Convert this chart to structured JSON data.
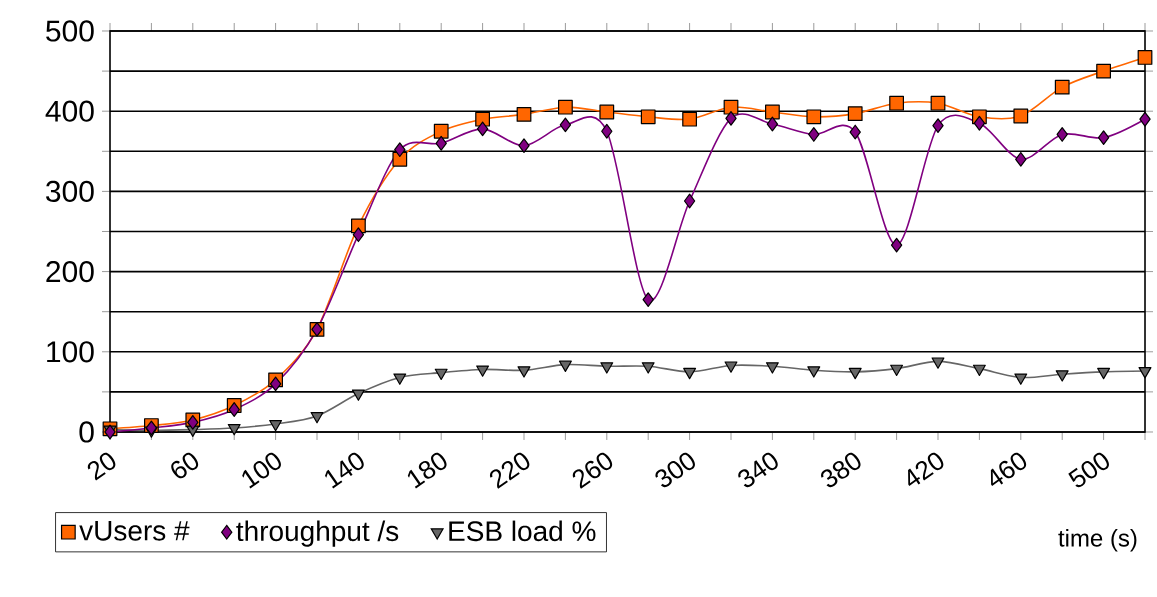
{
  "chart_data": {
    "type": "line",
    "xlabel": "time (s)",
    "categories": [
      "20",
      null,
      "60",
      null,
      "100",
      null,
      "140",
      null,
      "180",
      null,
      "220",
      null,
      "260",
      null,
      "300",
      null,
      "340",
      null,
      "380",
      null,
      "420",
      null,
      "460",
      null,
      "500",
      null
    ],
    "series": [
      {
        "name": "vUsers #",
        "color": "#ff6600",
        "marker": "square",
        "values": [
          4,
          8,
          15,
          33,
          65,
          128,
          257,
          340,
          375,
          390,
          396,
          405,
          399,
          393,
          390,
          405,
          399,
          393,
          397,
          410,
          410,
          393,
          394,
          430,
          450,
          467
        ]
      },
      {
        "name": "throughput /s",
        "color": "#800080",
        "marker": "diamond",
        "values": [
          0,
          5,
          12,
          28,
          60,
          128,
          246,
          352,
          360,
          378,
          357,
          383,
          375,
          165,
          288,
          391,
          384,
          371,
          374,
          233,
          382,
          385,
          340,
          371,
          367,
          390
        ]
      },
      {
        "name": "ESB load %",
        "color": "#666666",
        "marker": "triangle",
        "values": [
          3,
          2,
          3,
          5,
          10,
          20,
          48,
          68,
          74,
          78,
          77,
          84,
          82,
          82,
          75,
          83,
          82,
          77,
          75,
          79,
          88,
          79,
          68,
          72,
          75,
          76
        ]
      }
    ],
    "ylim": [
      0,
      500
    ],
    "yticks": [
      0,
      {
        "value": 50,
        "label": null
      },
      100,
      {
        "value": 150,
        "label": null
      },
      200,
      {
        "value": 250,
        "label": null
      },
      300,
      {
        "value": 350,
        "label": null
      },
      400,
      {
        "value": 450,
        "label": null
      },
      500
    ],
    "grid": "y",
    "legend": "bottom"
  }
}
